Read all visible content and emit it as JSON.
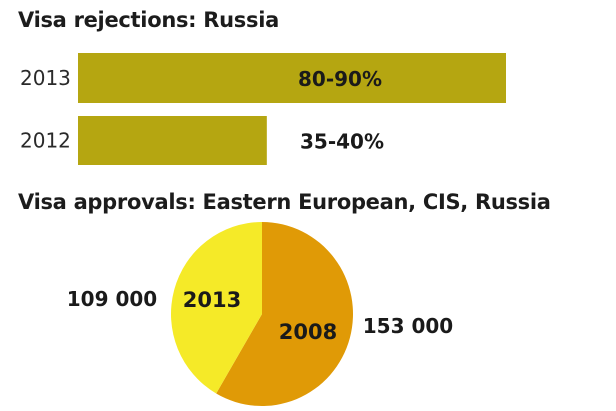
{
  "chart_data": [
    {
      "type": "bar",
      "orientation": "horizontal",
      "title": "Visa rejections: Russia",
      "categories": [
        "2013",
        "2012"
      ],
      "values": [
        85,
        37.5
      ],
      "labels": [
        "80-90%",
        "35-40%"
      ],
      "bar_color": "#b5a611",
      "xlim": [
        0,
        100
      ]
    },
    {
      "type": "pie",
      "title": "Visa approvals:  Eastern European, CIS, Russia",
      "slices": [
        {
          "year": "2008",
          "value": 153000,
          "value_label": "153 000",
          "color": "#e09a06"
        },
        {
          "year": "2013",
          "value": 109000,
          "value_label": "109 000",
          "color": "#f5ea28"
        }
      ]
    }
  ]
}
